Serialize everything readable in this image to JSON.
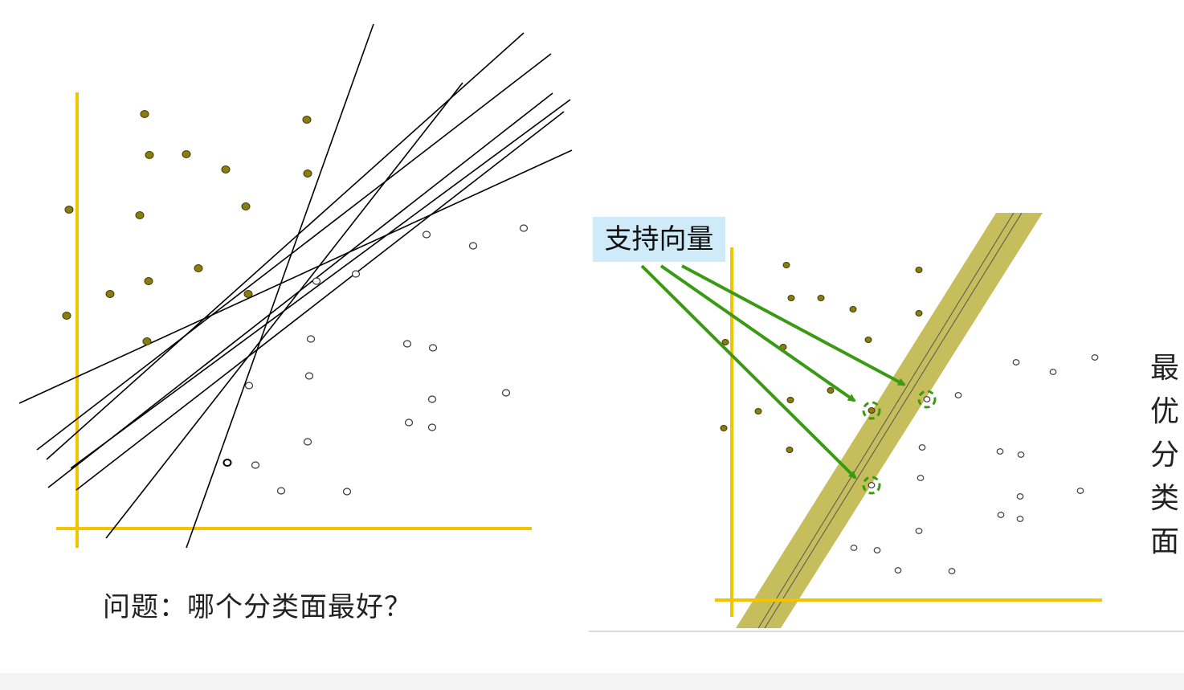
{
  "left_panel": {
    "caption": "问题：哪个分类面最好？"
  },
  "right_panel": {
    "support_vector_label": "支持向量",
    "optimal_plane_text": "最优分类面"
  },
  "colors": {
    "axis": "#f5c400",
    "class_a_fill": "#8a7d10",
    "class_b_stroke": "#333333",
    "margin_band": "#c6bd5c",
    "arrow": "#3a9a13",
    "line": "#000000",
    "label_bg": "#cfeaf9"
  }
}
